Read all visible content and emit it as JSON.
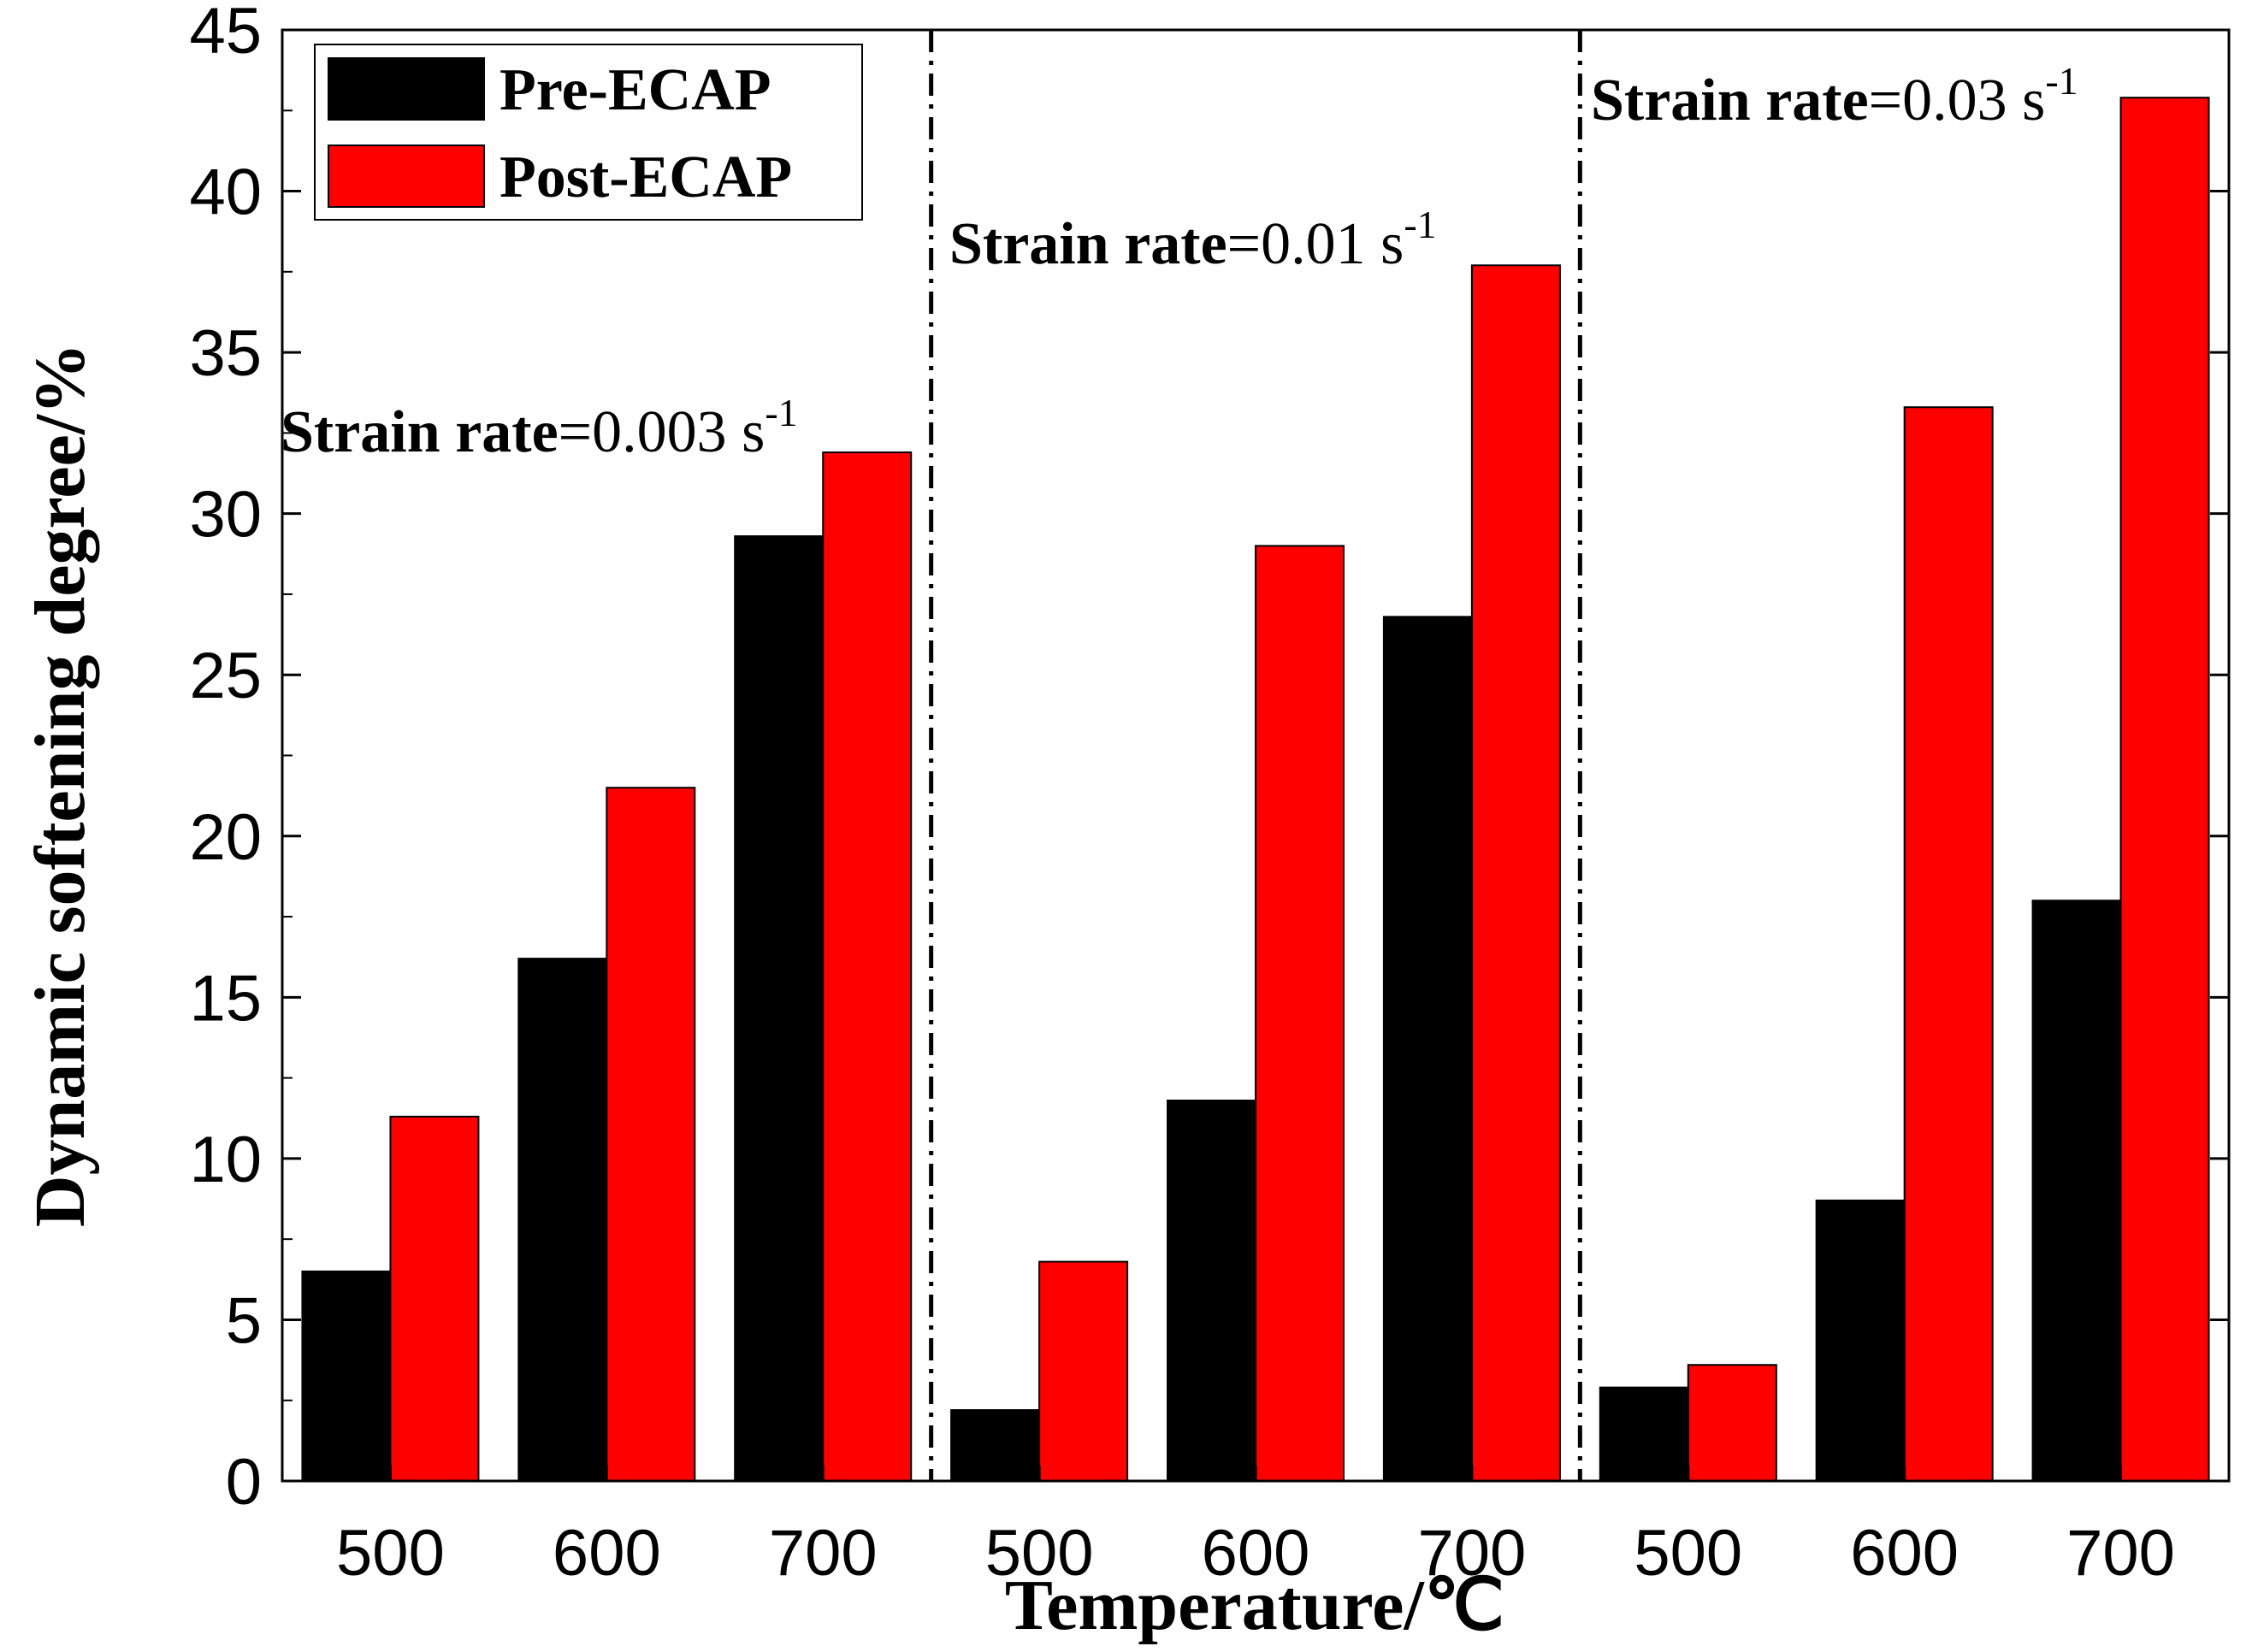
{
  "chart_data": {
    "type": "bar",
    "title": "",
    "xlabel": "Temperature/℃",
    "ylabel": "Dynamic softening degree/%",
    "ylim": [
      0,
      45
    ],
    "yticks": [
      0,
      5,
      10,
      15,
      20,
      25,
      30,
      35,
      40,
      45
    ],
    "grid": false,
    "legend_position": "top-left",
    "categories": [
      "500",
      "600",
      "700",
      "500",
      "600",
      "700",
      "500",
      "600",
      "700"
    ],
    "groups": [
      {
        "label": "Strain rate=0.003 s",
        "label_bold": "Strain rate",
        "label_value": "=0.003 s",
        "superscript": "-1",
        "categories": [
          "500",
          "600",
          "700"
        ]
      },
      {
        "label": "Strain rate=0.01 s",
        "label_bold": "Strain rate",
        "label_value": "=0.01 s",
        "superscript": "-1",
        "categories": [
          "500",
          "600",
          "700"
        ]
      },
      {
        "label": "Strain rate=0.03 s",
        "label_bold": "Strain rate",
        "label_value": "=0.03 s",
        "superscript": "-1",
        "categories": [
          "500",
          "600",
          "700"
        ]
      }
    ],
    "series": [
      {
        "name": "Pre-ECAP",
        "color": "#000000",
        "values": [
          6.5,
          16.2,
          29.3,
          2.2,
          11.8,
          26.8,
          2.9,
          8.7,
          18.0
        ]
      },
      {
        "name": "Post-ECAP",
        "color": "#ff0000",
        "values": [
          11.3,
          21.5,
          31.9,
          6.8,
          29.0,
          37.7,
          3.6,
          33.3,
          42.9
        ]
      }
    ]
  }
}
